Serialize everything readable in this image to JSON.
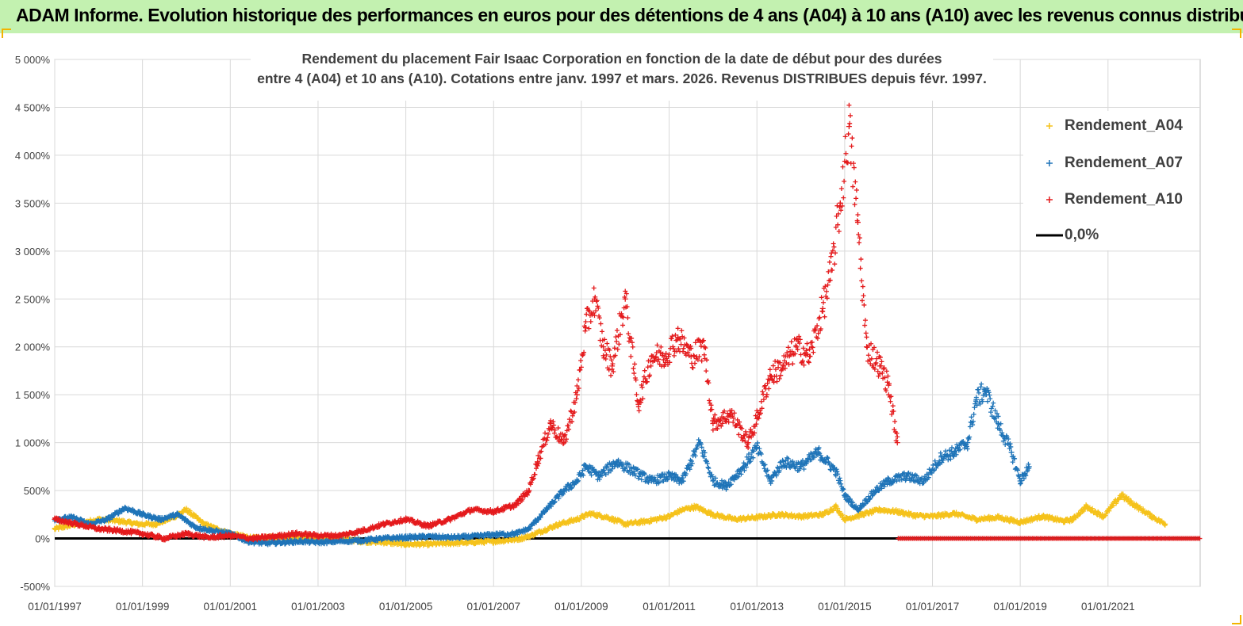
{
  "header": {
    "title": "ADAM Informe. Evolution historique des performances en euros pour des détentions de 4 ans (A04) à 10 ans (A10) avec les revenus connus distribués"
  },
  "colors": {
    "banner": "#c3f1b0",
    "accent_corner": "#f2b300",
    "a04": "#f5c21b",
    "a07": "#1f74b8",
    "a10": "#e41a1c",
    "zero": "#000000",
    "grid": "#d9d9d9"
  },
  "chart_data": {
    "type": "scatter",
    "title_line1": "Rendement du placement Fair Isaac Corporation en fonction de la date de début pour des durées",
    "title_line2": "entre 4 (A04) et 10 ans (A10). Cotations entre janv. 1997 et mars. 2026. Revenus DISTRIBUES depuis févr. 1997.",
    "x_unit": "decimal year",
    "xlim": [
      1997.0,
      2023.1
    ],
    "ylim": [
      -500,
      5000
    ],
    "y_ticks": [
      -500,
      0,
      500,
      1000,
      1500,
      2000,
      2500,
      3000,
      3500,
      4000,
      4500,
      5000
    ],
    "y_tick_labels": [
      "-500%",
      "0%",
      "500%",
      "1 000%",
      "1 500%",
      "2 000%",
      "2 500%",
      "3 000%",
      "3 500%",
      "4 000%",
      "4 500%",
      "5 000%"
    ],
    "x_ticks": [
      1997,
      1999,
      2001,
      2003,
      2005,
      2007,
      2009,
      2011,
      2013,
      2015,
      2017,
      2019,
      2021
    ],
    "x_tick_labels": [
      "01/01/1997",
      "01/01/1999",
      "01/01/2001",
      "01/01/2003",
      "01/01/2005",
      "01/01/2007",
      "01/01/2009",
      "01/01/2011",
      "01/01/2013",
      "01/01/2015",
      "01/01/2017",
      "01/01/2019",
      "01/01/2021"
    ],
    "legend_position": "top-right",
    "series": [
      {
        "name": "Rendement_A04",
        "marker": "+",
        "x": [
          1997.0,
          1997.5,
          1998.0,
          1998.5,
          1998.9,
          1999.3,
          1999.7,
          2000.0,
          2000.4,
          2000.8,
          2001.2,
          2001.6,
          2002.0,
          2002.5,
          2003.0,
          2003.5,
          2004.0,
          2004.5,
          2005.0,
          2005.5,
          2006.0,
          2006.5,
          2007.0,
          2007.5,
          2007.8,
          2008.0,
          2008.5,
          2008.9,
          2009.2,
          2009.6,
          2010.0,
          2010.5,
          2011.0,
          2011.3,
          2011.6,
          2012.0,
          2012.5,
          2013.0,
          2013.5,
          2014.0,
          2014.5,
          2014.8,
          2015.0,
          2015.4,
          2015.8,
          2016.2,
          2016.6,
          2017.0,
          2017.5,
          2018.0,
          2018.5,
          2019.0,
          2019.5,
          2020.0,
          2020.2,
          2020.5,
          2020.9,
          2021.3,
          2021.7,
          2022.0,
          2022.3
        ],
        "values": [
          100,
          150,
          200,
          180,
          150,
          150,
          220,
          300,
          150,
          80,
          30,
          0,
          10,
          20,
          10,
          0,
          -30,
          -40,
          -60,
          -60,
          -50,
          -40,
          -30,
          -10,
          20,
          60,
          150,
          200,
          260,
          220,
          150,
          180,
          230,
          300,
          330,
          250,
          200,
          220,
          250,
          230,
          250,
          330,
          200,
          250,
          300,
          280,
          240,
          230,
          260,
          200,
          220,
          170,
          230,
          180,
          200,
          330,
          230,
          450,
          320,
          230,
          150
        ]
      },
      {
        "name": "Rendement_A07",
        "marker": "+",
        "x": [
          1997.0,
          1997.4,
          1997.8,
          1998.2,
          1998.6,
          1999.0,
          1999.4,
          1999.8,
          2000.2,
          2000.6,
          2001.0,
          2001.4,
          2001.8,
          2002.2,
          2002.6,
          2003.0,
          2003.5,
          2004.0,
          2004.5,
          2005.0,
          2005.5,
          2006.0,
          2006.5,
          2007.0,
          2007.5,
          2007.8,
          2008.0,
          2008.3,
          2008.6,
          2008.9,
          2009.1,
          2009.4,
          2009.8,
          2010.2,
          2010.6,
          2011.0,
          2011.3,
          2011.7,
          2012.0,
          2012.3,
          2012.7,
          2013.0,
          2013.3,
          2013.6,
          2014.0,
          2014.4,
          2014.8,
          2015.0,
          2015.3,
          2015.7,
          2016.0,
          2016.4,
          2016.8,
          2017.2,
          2017.5,
          2017.8,
          2018.0,
          2018.2,
          2018.5,
          2018.8,
          2019.0,
          2019.2
        ],
        "values": [
          200,
          220,
          150,
          200,
          320,
          250,
          200,
          250,
          120,
          80,
          50,
          -30,
          -50,
          -40,
          -30,
          -40,
          -30,
          -20,
          0,
          10,
          20,
          10,
          20,
          40,
          50,
          100,
          200,
          350,
          500,
          600,
          750,
          650,
          800,
          700,
          600,
          650,
          600,
          1000,
          600,
          550,
          750,
          950,
          600,
          800,
          750,
          900,
          700,
          450,
          300,
          500,
          600,
          650,
          600,
          850,
          900,
          1000,
          1450,
          1550,
          1200,
          900,
          600,
          750
        ]
      },
      {
        "name": "Rendement_A10",
        "marker": "+",
        "x": [
          1997.0,
          1997.5,
          1998.0,
          1998.5,
          1999.0,
          1999.5,
          2000.0,
          2000.5,
          2001.0,
          2001.5,
          2002.0,
          2002.5,
          2003.0,
          2003.5,
          2004.0,
          2004.5,
          2005.0,
          2005.5,
          2006.0,
          2006.5,
          2007.0,
          2007.5,
          2007.8,
          2008.0,
          2008.3,
          2008.6,
          2008.9,
          2009.1,
          2009.3,
          2009.5,
          2009.7,
          2010.0,
          2010.3,
          2010.6,
          2010.9,
          2011.2,
          2011.5,
          2011.8,
          2012.0,
          2012.4,
          2012.8,
          2013.0,
          2013.3,
          2013.6,
          2013.9,
          2014.2,
          2014.5,
          2014.7,
          2014.9,
          2015.1,
          2015.3,
          2015.5,
          2015.8,
          2016.0,
          2016.2
        ],
        "values": [
          200,
          150,
          100,
          80,
          50,
          0,
          50,
          10,
          30,
          0,
          20,
          50,
          30,
          30,
          80,
          150,
          200,
          130,
          200,
          300,
          280,
          350,
          500,
          800,
          1200,
          1000,
          1500,
          2200,
          2500,
          2000,
          1800,
          2500,
          1400,
          1900,
          1900,
          2100,
          1900,
          2000,
          1200,
          1300,
          1000,
          1250,
          1700,
          1800,
          2000,
          1900,
          2400,
          2800,
          3500,
          4300,
          3300,
          2000,
          1800,
          1600,
          1000
        ]
      },
      {
        "name": "0,0%",
        "marker": "line",
        "x": [
          1997.0,
          2023.1
        ],
        "values": [
          0,
          0
        ]
      }
    ],
    "legend": [
      "Rendement_A04",
      "Rendement_A07",
      "Rendement_A10",
      "0,0%"
    ]
  }
}
